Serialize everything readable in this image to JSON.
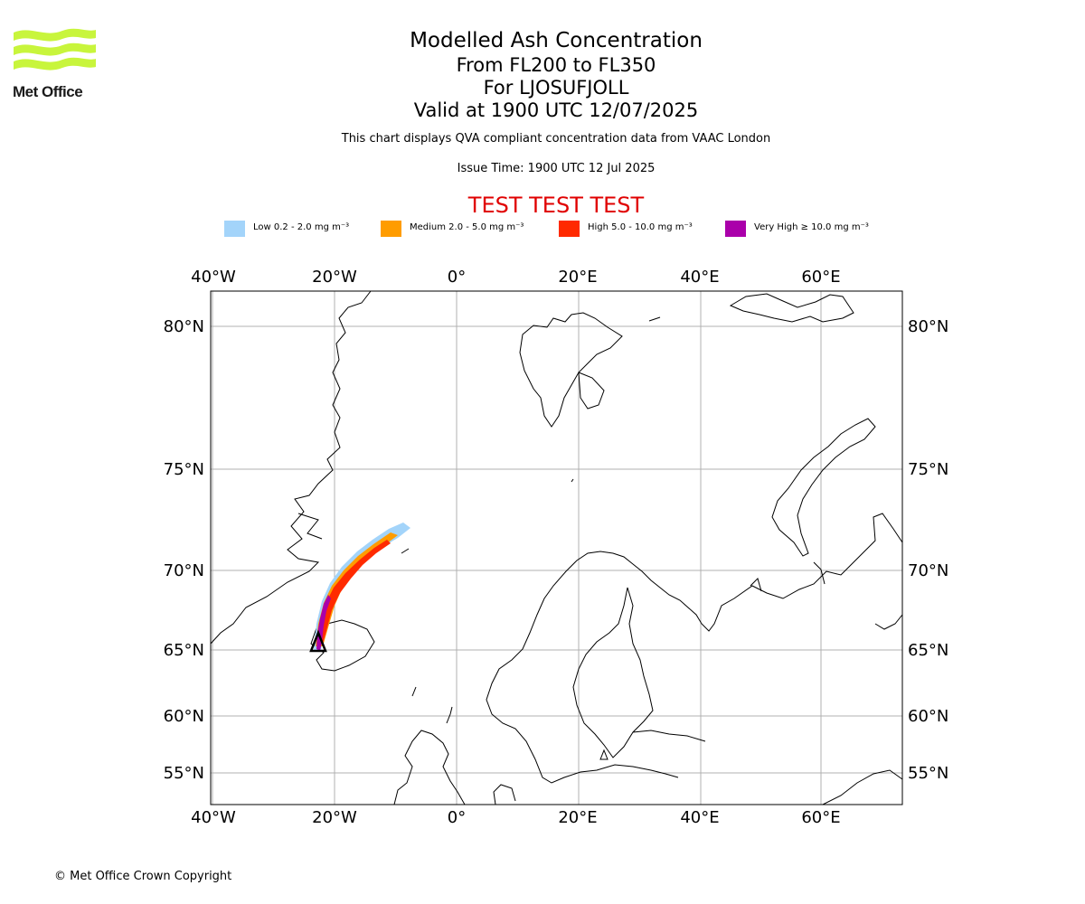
{
  "logo": {
    "text": "Met Office",
    "color": "#c8f53c"
  },
  "header": {
    "title": "Modelled Ash Concentration",
    "levels": "From FL200 to FL350",
    "volcano": "For LJOSUFJOLL",
    "valid": "Valid at 1900 UTC 12/07/2025",
    "note": "This chart displays QVA compliant concentration data from VAAC London",
    "issue": "Issue Time: 1900 UTC 12 Jul 2025",
    "test_banner": "TEST TEST TEST"
  },
  "legend": [
    {
      "label": "Low 0.2 - 2.0 mg m⁻³",
      "color": "#a3d4fa"
    },
    {
      "label": "Medium 2.0 - 5.0 mg m⁻³",
      "color": "#ff9c00"
    },
    {
      "label": "High 5.0 - 10.0 mg m⁻³",
      "color": "#ff2a00"
    },
    {
      "label": "Very High ≥ 10.0 mg m⁻³",
      "color": "#aa00aa"
    }
  ],
  "map": {
    "lon_ticks": [
      "40°W",
      "20°W",
      "0°",
      "20°E",
      "40°E",
      "60°E"
    ],
    "lat_ticks": [
      "80°N",
      "75°N",
      "70°N",
      "65°N",
      "60°N",
      "55°N"
    ],
    "volcano_marker": "triangle",
    "gridlines": true
  },
  "footer": {
    "copyright": "© Met Office Crown Copyright"
  }
}
